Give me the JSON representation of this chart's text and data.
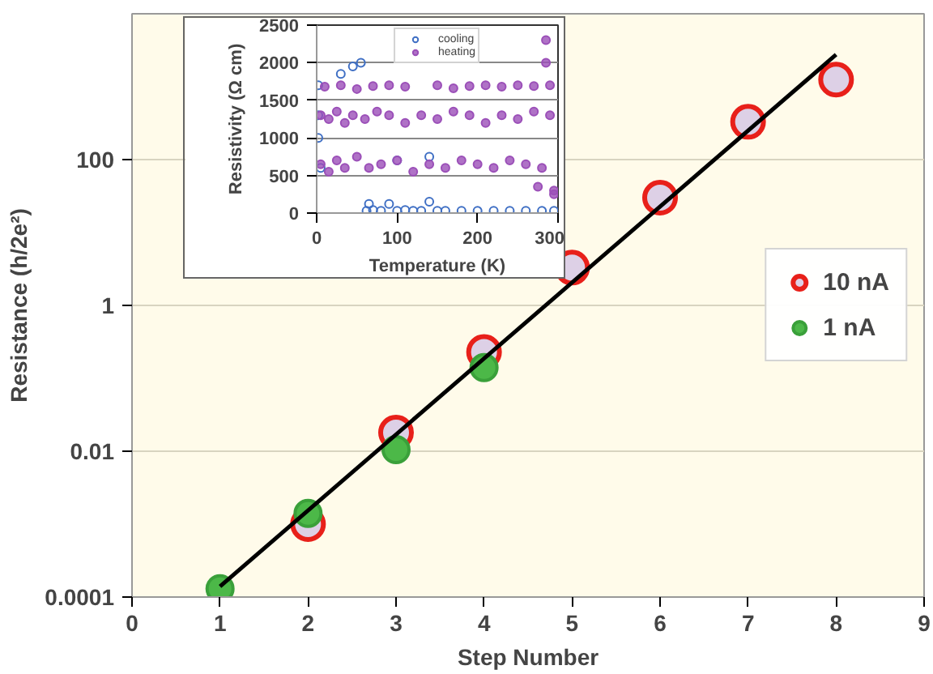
{
  "chart_data": [
    {
      "type": "scatter",
      "xlabel": "Step Number",
      "ylabel": "Resistance (h/2e²)",
      "log": "y",
      "xlim": [
        0,
        9
      ],
      "xticks": [
        0,
        1,
        2,
        3,
        4,
        5,
        6,
        7,
        8,
        9
      ],
      "ylim": [
        0.0001,
        10000
      ],
      "yticks": [
        0.0001,
        0.01,
        1,
        100
      ],
      "grid": "y",
      "legend": "right",
      "marker": "circle",
      "series": [
        {
          "name": "10 nA",
          "color": "#e8201a",
          "x": [
            2,
            3,
            4,
            5,
            6,
            7,
            8
          ],
          "values": [
            0.001,
            0.018,
            0.23,
            3.3,
            30,
            330,
            1250
          ]
        },
        {
          "name": "1 nA",
          "color": "#4cb848",
          "x": [
            1,
            2,
            3,
            4
          ],
          "values": [
            0.00013,
            0.0014,
            0.0105,
            0.14
          ]
        },
        {
          "type": "line",
          "marker": "none",
          "color": "#000000",
          "x": [
            1,
            8
          ],
          "values": [
            0.00014,
            2750
          ]
        }
      ]
    },
    {
      "type": "scatter",
      "xlabel": "Temperature (K)",
      "ylabel": "Resistivity (Ω cm)",
      "xlim": [
        0,
        300
      ],
      "xticks": [
        0,
        100,
        200,
        300
      ],
      "ylim": [
        0,
        2500
      ],
      "yticks": [
        0,
        500,
        1000,
        1500,
        2000,
        2500
      ],
      "grid": "y",
      "legend": "top",
      "marker": "circle",
      "series": [
        {
          "name": "cooling",
          "color": "#3f6fc4",
          "x": [
            2,
            5,
            30,
            45,
            55,
            62,
            65,
            70,
            80,
            90,
            100,
            110,
            120,
            130,
            140,
            150,
            160,
            180,
            200,
            220,
            240,
            260,
            280,
            295,
            2,
            2,
            100,
            140
          ],
          "values": [
            1700,
            600,
            1850,
            1950,
            2000,
            30,
            120,
            40,
            30,
            120,
            30,
            40,
            30,
            30,
            150,
            30,
            30,
            30,
            30,
            30,
            30,
            30,
            30,
            30,
            1300,
            1000,
            700,
            750
          ]
        },
        {
          "name": "heating",
          "color": "#9b4fb8",
          "x": [
            5,
            15,
            25,
            35,
            45,
            60,
            75,
            90,
            110,
            130,
            150,
            170,
            190,
            210,
            230,
            250,
            270,
            290,
            5,
            15,
            25,
            35,
            50,
            65,
            80,
            100,
            120,
            140,
            160,
            180,
            200,
            220,
            240,
            260,
            280,
            295,
            10,
            30,
            50,
            70,
            90,
            110,
            150,
            170,
            190,
            210,
            230,
            250,
            270,
            290,
            285,
            285,
            275,
            295
          ],
          "values": [
            1300,
            1250,
            1350,
            1200,
            1300,
            1250,
            1350,
            1300,
            1200,
            1300,
            1250,
            1350,
            1300,
            1200,
            1300,
            1250,
            1350,
            1300,
            650,
            550,
            700,
            600,
            750,
            600,
            650,
            700,
            550,
            650,
            600,
            700,
            650,
            600,
            700,
            650,
            600,
            300,
            1680,
            1700,
            1650,
            1690,
            1700,
            1680,
            1700,
            1660,
            1690,
            1700,
            1680,
            1700,
            1690,
            1700,
            2300,
            2000,
            350,
            250
          ]
        }
      ]
    }
  ]
}
